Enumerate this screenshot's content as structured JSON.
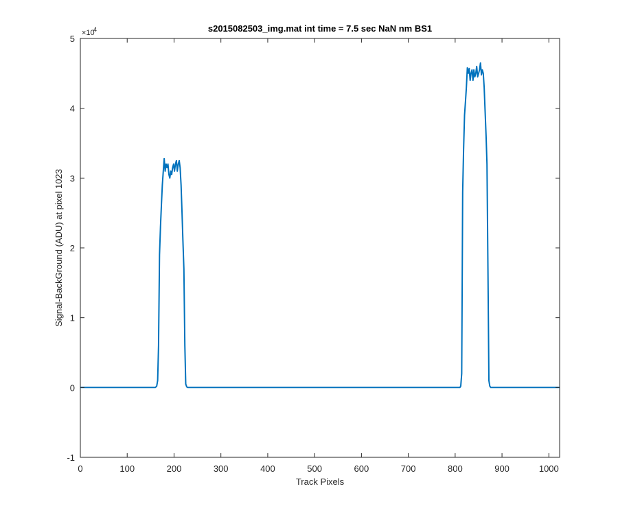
{
  "chart_data": {
    "type": "line",
    "title": "s2015082503_img.mat int time = 7.5 sec  NaN nm BS1",
    "xlabel": "Track Pixels",
    "ylabel": "Signal-BackGround (ADU) at pixel 1023",
    "xlim": [
      0,
      1023
    ],
    "ylim": [
      -1,
      5
    ],
    "y_multiplier_label": "×10",
    "y_multiplier_exponent": "4",
    "x_ticks": [
      0,
      100,
      200,
      300,
      400,
      500,
      600,
      700,
      800,
      900,
      1000
    ],
    "y_ticks": [
      -1,
      0,
      1,
      2,
      3,
      4,
      5
    ],
    "grid": false,
    "series": [
      {
        "color": "#0072BD",
        "x": [
          0,
          150,
          160,
          163,
          165,
          167,
          169,
          171,
          173,
          175,
          177,
          179,
          181,
          183,
          185,
          187,
          189,
          191,
          193,
          195,
          197,
          199,
          201,
          203,
          205,
          207,
          209,
          211,
          213,
          215,
          217,
          219,
          221,
          223,
          225,
          227,
          229,
          232,
          240,
          400,
          600,
          800,
          810,
          812,
          814,
          816,
          818,
          820,
          822,
          824,
          826,
          828,
          830,
          832,
          834,
          836,
          838,
          840,
          842,
          844,
          846,
          848,
          850,
          852,
          854,
          856,
          858,
          860,
          862,
          864,
          866,
          868,
          870,
          872,
          874,
          876,
          878,
          880,
          890,
          1023
        ],
        "y": [
          0,
          0,
          0,
          0.02,
          0.1,
          0.6,
          1.9,
          2.3,
          2.6,
          2.9,
          3.1,
          3.28,
          3.1,
          3.2,
          3.15,
          3.2,
          3.05,
          3.0,
          3.1,
          3.05,
          3.15,
          3.2,
          3.1,
          3.2,
          3.25,
          3.1,
          3.2,
          3.25,
          3.15,
          2.9,
          2.5,
          2.1,
          1.7,
          0.6,
          0.05,
          0.01,
          0,
          0,
          0,
          0,
          0,
          0,
          0,
          0.02,
          0.2,
          2.8,
          3.4,
          3.9,
          4.1,
          4.3,
          4.58,
          4.5,
          4.57,
          4.4,
          4.5,
          4.55,
          4.4,
          4.55,
          4.45,
          4.5,
          4.6,
          4.45,
          4.5,
          4.55,
          4.65,
          4.48,
          4.55,
          4.5,
          4.3,
          3.95,
          3.6,
          3.2,
          1.7,
          0.1,
          0.02,
          0,
          0,
          0,
          0,
          0
        ]
      }
    ]
  }
}
